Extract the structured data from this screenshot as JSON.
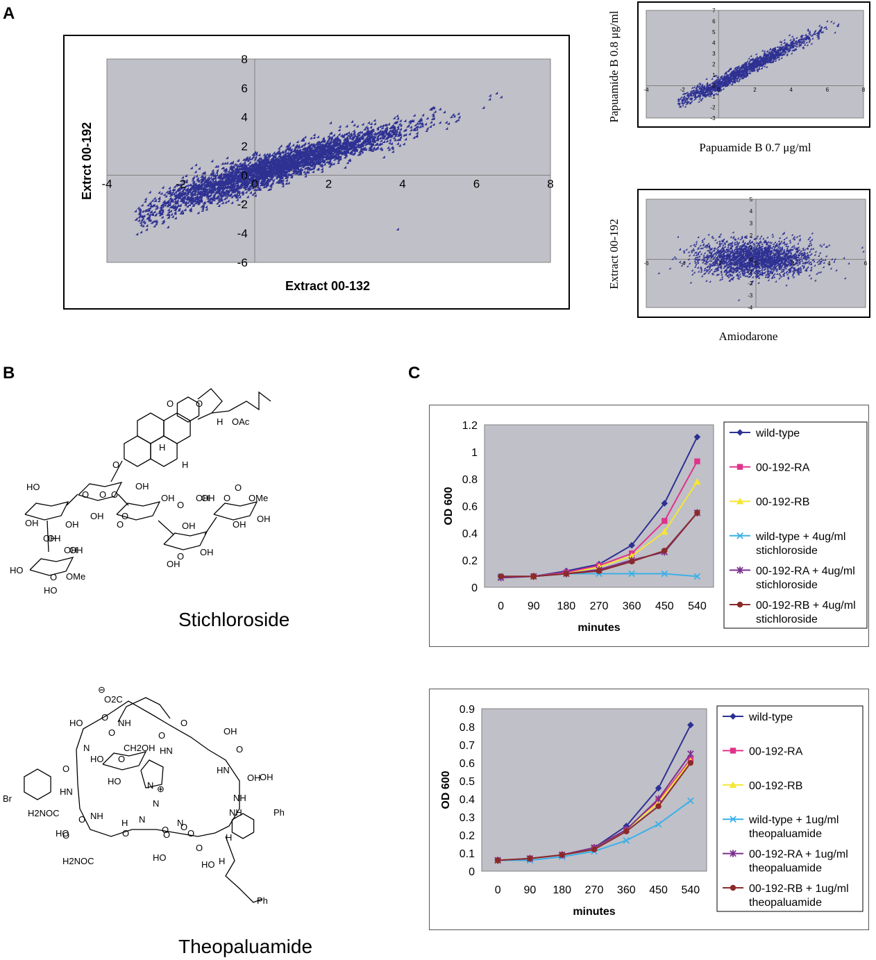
{
  "panels": {
    "a": "A",
    "b": "B",
    "c": "C"
  },
  "chart_data": [
    {
      "id": "A-main",
      "type": "scatter",
      "title": "",
      "xlabel": "Extract 00-132",
      "ylabel": "Extrct 00-192",
      "xlim": [
        -4,
        8
      ],
      "ylim": [
        -6,
        8
      ],
      "xticks": [
        "-4",
        "-2",
        "0",
        "2",
        "4",
        "6",
        "8"
      ],
      "yticks": [
        "-6",
        "-4",
        "-2",
        "0",
        "2",
        "4",
        "6",
        "8"
      ],
      "grid": false,
      "plot_bg": "#c0c0c8",
      "marker_color": "#2e3192",
      "marker": "diamond",
      "trend": {
        "form": "log-like curve, positive correlation",
        "points": [
          [
            -3.0,
            -3.0
          ],
          [
            -2.0,
            -1.7
          ],
          [
            -1.0,
            -0.8
          ],
          [
            0.0,
            0.0
          ],
          [
            1.0,
            0.8
          ],
          [
            2.0,
            1.6
          ],
          [
            3.0,
            2.3
          ],
          [
            4.0,
            3.0
          ],
          [
            5.0,
            3.8
          ],
          [
            6.0,
            4.6
          ],
          [
            6.7,
            5.2
          ]
        ]
      },
      "outliers": [
        [
          3.9,
          -3.8
        ],
        [
          6.7,
          5.3
        ],
        [
          6.4,
          5.4
        ]
      ]
    },
    {
      "id": "A-papuamide",
      "type": "scatter",
      "xlabel": "Papuamide B 0.7 μg/ml",
      "ylabel": "Papuamide B 0.8 μg/ml",
      "xlim": [
        -4,
        8
      ],
      "ylim": [
        -3,
        7
      ],
      "xticks": [
        "-4",
        "-2",
        "0",
        "2",
        "4",
        "6",
        "8"
      ],
      "yticks": [
        "-3",
        "-2",
        "-1",
        "0",
        "1",
        "2",
        "3",
        "4",
        "5",
        "6",
        "7"
      ],
      "grid": false,
      "plot_bg": "#c0c0c8",
      "marker_color": "#2e3192",
      "trend": {
        "form": "tight linear, positive",
        "points": [
          [
            -2.0,
            -1.5
          ],
          [
            0.0,
            0.0
          ],
          [
            2.0,
            1.9
          ],
          [
            4.0,
            3.6
          ],
          [
            6.0,
            5.2
          ],
          [
            7.0,
            5.9
          ]
        ]
      }
    },
    {
      "id": "A-amiodarone",
      "type": "scatter",
      "xlabel": "Amiodarone",
      "ylabel": "Extract 00-192",
      "xlim": [
        -6,
        6
      ],
      "ylim": [
        -4,
        5
      ],
      "xticks": [
        "-6",
        "-4",
        "-2",
        "0",
        "2",
        "4",
        "6"
      ],
      "yticks": [
        "-4",
        "-3",
        "-2",
        "-1",
        "0",
        "1",
        "2",
        "3",
        "4",
        "5"
      ],
      "grid": false,
      "plot_bg": "#c0c0c8",
      "marker_color": "#2e3192",
      "trend": {
        "form": "uncorrelated cloud centred near origin",
        "points": [
          [
            -5.0,
            0.0
          ],
          [
            0.0,
            0.0
          ],
          [
            5.0,
            0.0
          ]
        ]
      }
    },
    {
      "id": "C-stichloroside",
      "type": "line",
      "xlabel": "minutes",
      "ylabel": "OD 600",
      "categories": [
        "0",
        "90",
        "180",
        "270",
        "360",
        "450",
        "540"
      ],
      "ylim": [
        0,
        1.2
      ],
      "yticks": [
        "0",
        "0.2",
        "0.4",
        "0.6",
        "0.8",
        "1",
        "1.2"
      ],
      "grid": false,
      "legend_position": "right",
      "plot_bg": "#c0c0c8",
      "series": [
        {
          "name": "wild-type",
          "color": "#2e3192",
          "marker": "diamond",
          "values": [
            0.08,
            0.08,
            0.12,
            0.17,
            0.31,
            0.62,
            1.11
          ]
        },
        {
          "name": "00-192-RA",
          "color": "#e0338a",
          "marker": "square",
          "values": [
            0.08,
            0.08,
            0.11,
            0.16,
            0.25,
            0.49,
            0.93
          ]
        },
        {
          "name": "00-192-RB",
          "color": "#f5e632",
          "marker": "triangle",
          "values": [
            0.08,
            0.08,
            0.1,
            0.15,
            0.23,
            0.41,
            0.78
          ]
        },
        {
          "name": [
            "wild-type + 4ug/ml",
            "stichloroside"
          ],
          "color": "#3ab0e8",
          "marker": "x",
          "values": [
            0.08,
            0.08,
            0.1,
            0.1,
            0.1,
            0.1,
            0.08
          ]
        },
        {
          "name": [
            "00-192-RA + 4ug/ml",
            "stichloroside"
          ],
          "color": "#7b2f8e",
          "marker": "star",
          "values": [
            0.07,
            0.08,
            0.1,
            0.13,
            0.2,
            0.26,
            0.55
          ]
        },
        {
          "name": [
            "00-192-RB + 4ug/ml",
            "stichloroside"
          ],
          "color": "#8b2a2a",
          "marker": "circle",
          "values": [
            0.08,
            0.08,
            0.1,
            0.12,
            0.19,
            0.27,
            0.55
          ]
        }
      ]
    },
    {
      "id": "C-theopaluamide",
      "type": "line",
      "xlabel": "minutes",
      "ylabel": "OD 600",
      "categories": [
        "0",
        "90",
        "180",
        "270",
        "360",
        "450",
        "540"
      ],
      "ylim": [
        0,
        0.9
      ],
      "yticks": [
        "0",
        "0.1",
        "0.2",
        "0.3",
        "0.4",
        "0.5",
        "0.6",
        "0.7",
        "0.8",
        "0.9"
      ],
      "grid": false,
      "legend_position": "right",
      "plot_bg": "#c0c0c8",
      "series": [
        {
          "name": "wild-type",
          "color": "#2e3192",
          "marker": "diamond",
          "values": [
            0.06,
            0.07,
            0.09,
            0.13,
            0.25,
            0.46,
            0.81
          ]
        },
        {
          "name": "00-192-RA",
          "color": "#e0338a",
          "marker": "square",
          "values": [
            0.06,
            0.07,
            0.09,
            0.13,
            0.23,
            0.39,
            0.62
          ]
        },
        {
          "name": "00-192-RB",
          "color": "#f5e632",
          "marker": "triangle",
          "values": [
            0.06,
            0.07,
            0.09,
            0.13,
            0.23,
            0.38,
            0.61
          ]
        },
        {
          "name": [
            "wild-type + 1ug/ml",
            "theopaluamide"
          ],
          "color": "#3ab0e8",
          "marker": "x",
          "values": [
            0.06,
            0.06,
            0.08,
            0.11,
            0.17,
            0.26,
            0.39
          ]
        },
        {
          "name": [
            "00-192-RA  + 1ug/ml",
            "theopaluamide"
          ],
          "color": "#7b2f8e",
          "marker": "star",
          "values": [
            0.06,
            0.07,
            0.09,
            0.13,
            0.23,
            0.4,
            0.65
          ]
        },
        {
          "name": [
            "00-192-RB + 1ug/ml",
            "theopaluamide"
          ],
          "color": "#8b2a2a",
          "marker": "circle",
          "values": [
            0.06,
            0.07,
            0.09,
            0.12,
            0.22,
            0.36,
            0.6
          ]
        }
      ]
    }
  ],
  "compounds": [
    {
      "name": "Stichloroside",
      "atom_labels": [
        "O",
        "O",
        "H",
        "OAc",
        "H",
        "H",
        "O",
        "O",
        "OH",
        "O",
        "O",
        "OH",
        "O",
        "O",
        "OH",
        "OH",
        "OH",
        "OH",
        "O",
        "O",
        "OMe",
        "HO",
        "OH",
        "OH",
        "OH",
        "OH",
        "OH",
        "HO",
        "O",
        "OH",
        "O",
        "OH",
        "OMe",
        "HO",
        "OH",
        "O",
        "OH",
        "OH"
      ]
    },
    {
      "name": "Theopaluamide",
      "atom_labels": [
        "⊖",
        "O2C",
        "O",
        "NH",
        "O",
        "HO",
        "N",
        "HO",
        "O",
        "CH2OH",
        "HN",
        "OH",
        "HO",
        "O",
        "O",
        "N",
        "⊕",
        "N",
        "HN",
        "O",
        "OH",
        "Br",
        "HN",
        "O",
        "NH",
        "H2NOC",
        "HO",
        "NH",
        "O",
        "O",
        "N",
        "O",
        "H",
        "N",
        "O",
        "NH",
        "HO",
        "O",
        "H2NOC",
        "H",
        "O",
        "HO",
        "Ph",
        "Ph",
        "H",
        "O",
        "O",
        "OH"
      ]
    }
  ]
}
